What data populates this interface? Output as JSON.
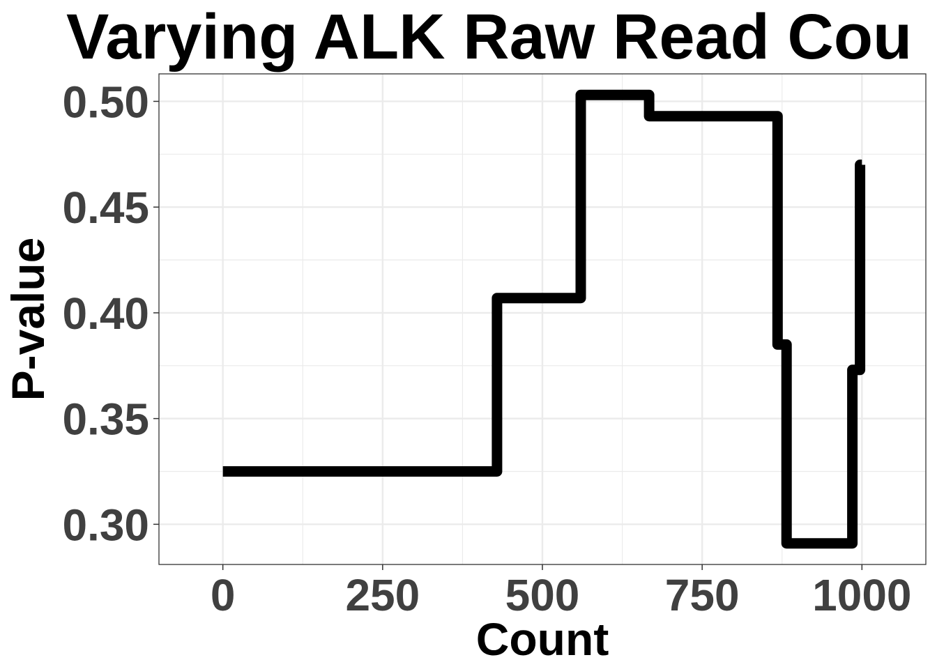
{
  "chart_data": {
    "type": "line",
    "title": "Varying ALK Raw Read Cou",
    "xlabel": "Count",
    "ylabel": "P-value",
    "xlim": [
      -100,
      1100
    ],
    "ylim": [
      0.281,
      0.513
    ],
    "x_ticks": [
      0,
      250,
      500,
      750,
      1000
    ],
    "x_tick_labels": [
      "0",
      "250",
      "500",
      "750",
      "1000"
    ],
    "y_ticks": [
      0.3,
      0.35,
      0.4,
      0.45,
      0.5
    ],
    "y_tick_labels": [
      "0.30",
      "0.35",
      "0.40",
      "0.45",
      "0.50"
    ],
    "grid": true,
    "line_color": "#000000",
    "series": [
      {
        "x": [
          0,
          429,
          429,
          560,
          560,
          667,
          667,
          868,
          868,
          882,
          882,
          985,
          985,
          997,
          997,
          1000
        ],
        "y": [
          0.325,
          0.325,
          0.407,
          0.407,
          0.503,
          0.503,
          0.493,
          0.493,
          0.385,
          0.385,
          0.291,
          0.291,
          0.373,
          0.373,
          0.47,
          0.47
        ]
      }
    ]
  }
}
